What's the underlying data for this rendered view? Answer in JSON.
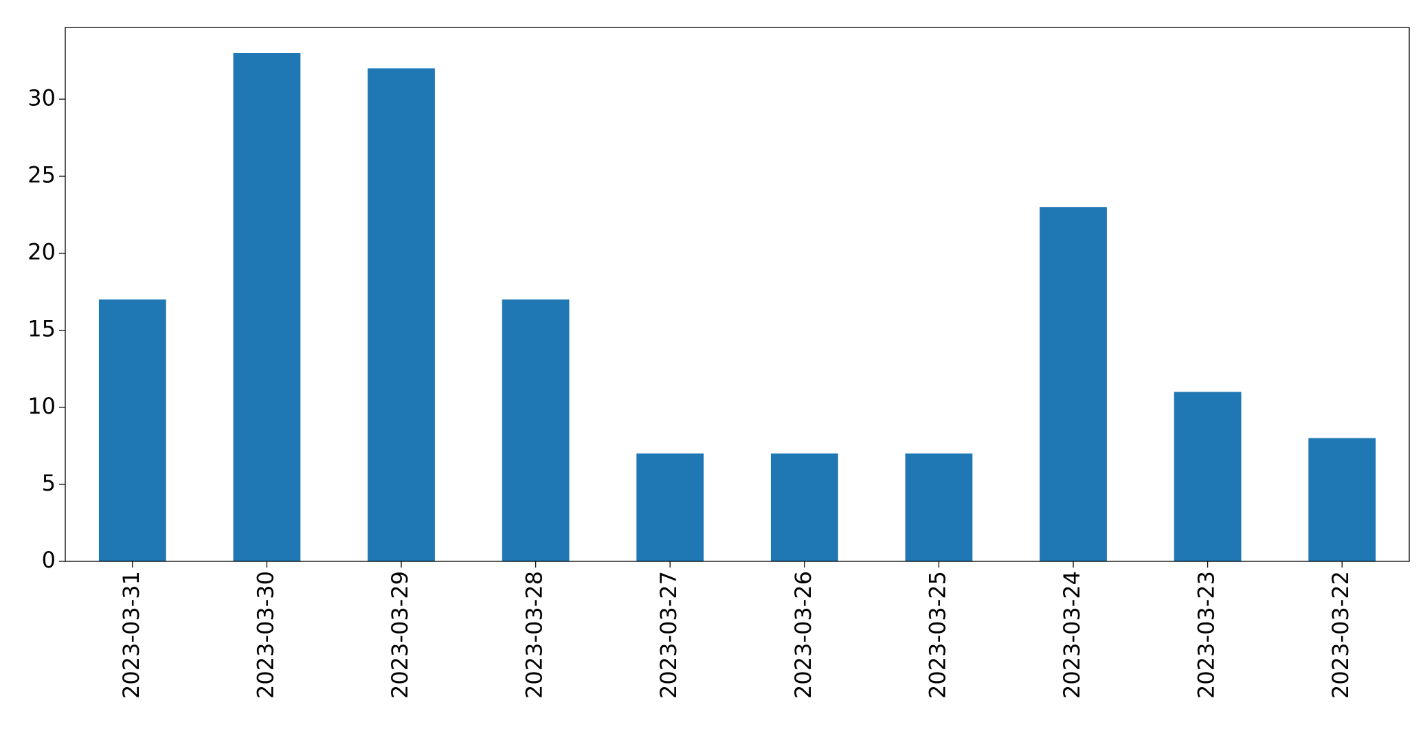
{
  "chart_data": {
    "type": "bar",
    "categories": [
      "2023-03-31",
      "2023-03-30",
      "2023-03-29",
      "2023-03-28",
      "2023-03-27",
      "2023-03-26",
      "2023-03-25",
      "2023-03-24",
      "2023-03-23",
      "2023-03-22"
    ],
    "values": [
      17,
      33,
      32,
      17,
      7,
      7,
      7,
      23,
      11,
      8
    ],
    "color": "#1f77b4",
    "ylim": [
      0,
      34.65
    ],
    "yticks": [
      0,
      5,
      10,
      15,
      20,
      25,
      30
    ],
    "grid": false
  }
}
